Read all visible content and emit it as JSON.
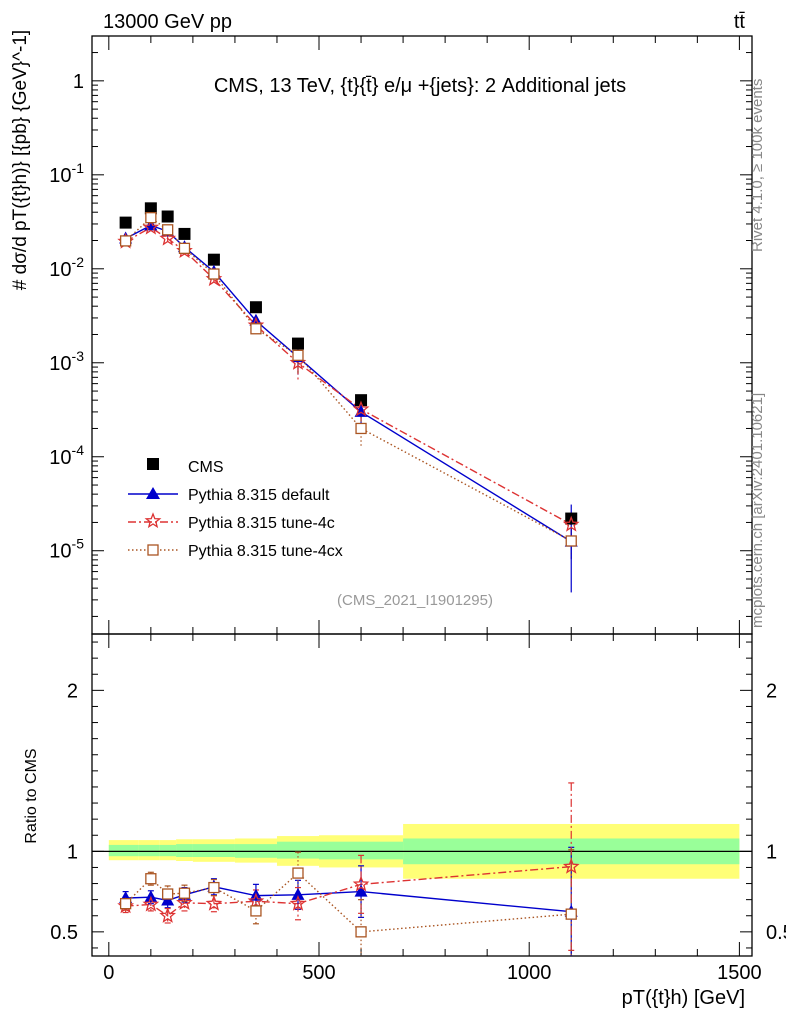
{
  "header": {
    "energy_label": "13000 GeV pp",
    "process_label": "tt̄",
    "plot_title": "CMS, 13 TeV, {t}{t̄} e/μ +{jets}: 2 Additional jets",
    "analysis_id": "(CMS_2021_I1901295)",
    "side_label_top": "Rivet 4.1.0, ≥ 100k events",
    "side_label_bottom": "mcplots.cern.ch [arXiv:2401.10621]"
  },
  "colors": {
    "cms": "#000000",
    "default": "#0000cc",
    "tune4c": "#dd3333",
    "tune4cx": "#aa5522",
    "band_green": "#99ff99",
    "band_yellow": "#ffff77"
  },
  "chart_data": [
    {
      "type": "scatter",
      "panel": "main",
      "ylabel": "# dσ/d pT({t}h)} [{pb} {GeV}^-1]",
      "yscale": "log",
      "xlim": [
        -40,
        1530
      ],
      "ylim": [
        1.3e-06,
        3
      ],
      "y_ticks": [
        "1",
        "10^-1",
        "10^-2",
        "10^-3",
        "10^-4",
        "10^-5"
      ],
      "y_tick_values": [
        1,
        0.1,
        0.01,
        0.001,
        0.0001,
        1e-05
      ],
      "x": [
        40,
        100,
        140,
        180,
        250,
        350,
        450,
        600,
        1100
      ],
      "series": [
        {
          "name": "CMS",
          "marker": "square",
          "values": [
            0.031,
            0.044,
            0.036,
            0.0235,
            0.0125,
            0.0039,
            0.0016,
            0.0004,
            2.2e-05
          ]
        },
        {
          "name": "Pythia 8.315 default",
          "marker": "triangle",
          "values": [
            0.021,
            0.029,
            0.025,
            0.017,
            0.0093,
            0.0028,
            0.00115,
            0.0003,
            1.25e-05
          ]
        },
        {
          "name": "Pythia 8.315 tune-4c",
          "marker": "star",
          "values": [
            0.0195,
            0.0275,
            0.021,
            0.0155,
            0.0078,
            0.0025,
            0.001,
            0.00032,
            1.9e-05
          ]
        },
        {
          "name": "Pythia 8.315 tune-4cx",
          "marker": "open-square",
          "values": [
            0.0198,
            0.035,
            0.026,
            0.0165,
            0.0088,
            0.0023,
            0.0012,
            0.0002,
            1.27e-05
          ]
        }
      ]
    },
    {
      "type": "line",
      "panel": "ratio",
      "ylabel": "Ratio to CMS",
      "xlabel": "pT({t}h) [GeV]",
      "xlim": [
        -40,
        1530
      ],
      "ylim": [
        0.35,
        2.35
      ],
      "x_ticks": [
        "0",
        "500",
        "1000",
        "1500"
      ],
      "x_tick_values": [
        0,
        500,
        1000,
        1500
      ],
      "y_ticks": [
        "0.5",
        "1",
        "2"
      ],
      "y_tick_values": [
        0.5,
        1,
        2
      ],
      "x": [
        40,
        100,
        140,
        180,
        250,
        350,
        450,
        600,
        1100
      ],
      "bands": {
        "edges": [
          0,
          70,
          120,
          160,
          200,
          300,
          400,
          500,
          700,
          1500
        ],
        "green": [
          [
            0.97,
            1.04
          ],
          [
            0.97,
            1.04
          ],
          [
            0.97,
            1.04
          ],
          [
            0.965,
            1.045
          ],
          [
            0.965,
            1.045
          ],
          [
            0.96,
            1.045
          ],
          [
            0.955,
            1.06
          ],
          [
            0.95,
            1.06
          ],
          [
            0.92,
            1.08
          ]
        ],
        "yellow": [
          [
            0.945,
            1.07
          ],
          [
            0.945,
            1.07
          ],
          [
            0.945,
            1.07
          ],
          [
            0.94,
            1.075
          ],
          [
            0.935,
            1.075
          ],
          [
            0.93,
            1.08
          ],
          [
            0.91,
            1.095
          ],
          [
            0.9,
            1.1
          ],
          [
            0.83,
            1.17
          ]
        ]
      },
      "series": [
        {
          "name": "Pythia 8.315 default",
          "values": [
            0.71,
            0.715,
            0.695,
            0.73,
            0.78,
            0.725,
            0.73,
            0.75,
            0.625
          ],
          "errors": [
            0.04,
            0.04,
            0.045,
            0.045,
            0.05,
            0.07,
            0.09,
            0.16,
            0.4
          ]
        },
        {
          "name": "Pythia 8.315 tune-4c",
          "values": [
            0.66,
            0.67,
            0.6,
            0.68,
            0.675,
            0.69,
            0.675,
            0.795,
            0.905
          ],
          "errors": [
            0.04,
            0.04,
            0.045,
            0.05,
            0.05,
            0.07,
            0.1,
            0.18,
            0.52
          ]
        },
        {
          "name": "Pythia 8.315 tune-4cx",
          "values": [
            0.675,
            0.83,
            0.735,
            0.74,
            0.775,
            0.63,
            0.865,
            0.5,
            0.61
          ],
          "errors": [
            0.04,
            0.04,
            0.05,
            0.05,
            0.05,
            0.08,
            0.13,
            0.2,
            0.4
          ]
        }
      ]
    }
  ]
}
